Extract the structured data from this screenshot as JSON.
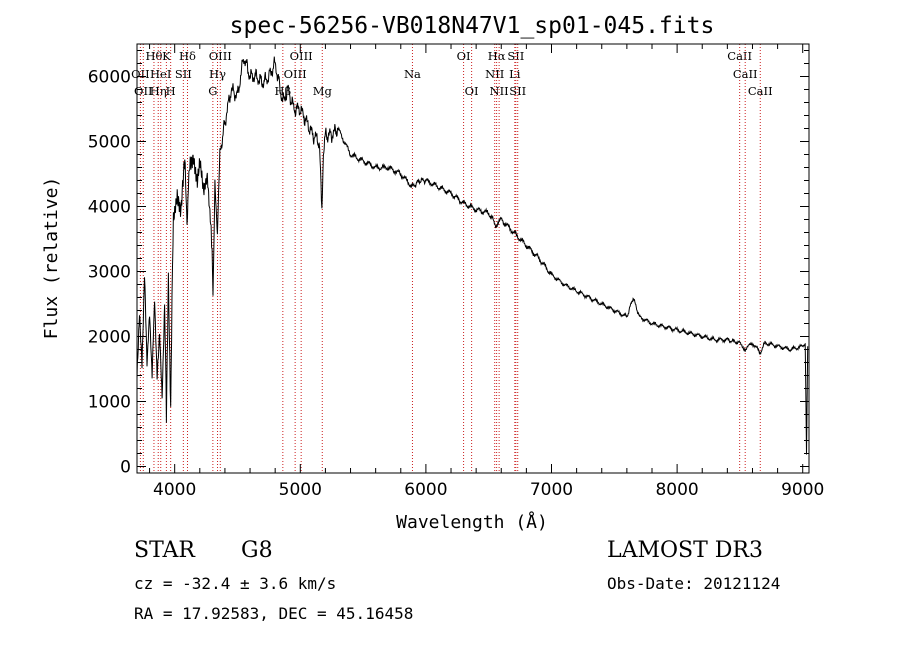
{
  "chart_data": {
    "type": "line",
    "title": "spec-56256-VB018N47V1_sp01-045.fits",
    "xlabel": "Wavelength (Å)",
    "ylabel": "Flux (relative)",
    "xlim": [
      3700,
      9050
    ],
    "ylim": [
      -100,
      6500
    ],
    "x_ticks": [
      4000,
      5000,
      6000,
      7000,
      8000,
      9000
    ],
    "y_ticks": [
      0,
      1000,
      2000,
      3000,
      4000,
      5000,
      6000
    ],
    "x_tick_labels": [
      "4000",
      "5000",
      "6000",
      "7000",
      "8000",
      "9000"
    ],
    "y_tick_labels": [
      "0",
      "1000",
      "2000",
      "3000",
      "4000",
      "5000",
      "6000"
    ],
    "series": [
      {
        "name": "flux",
        "color": "#000000",
        "x": [
          3700,
          3720,
          3740,
          3760,
          3780,
          3800,
          3820,
          3840,
          3860,
          3880,
          3900,
          3920,
          3934,
          3950,
          3968,
          3990,
          4020,
          4050,
          4080,
          4102,
          4120,
          4150,
          4180,
          4200,
          4230,
          4260,
          4290,
          4305,
          4320,
          4340,
          4360,
          4400,
          4450,
          4500,
          4550,
          4600,
          4650,
          4700,
          4750,
          4800,
          4861,
          4900,
          4950,
          5000,
          5050,
          5100,
          5150,
          5172,
          5184,
          5200,
          5250,
          5300,
          5400,
          5500,
          5600,
          5700,
          5800,
          5893,
          5950,
          6000,
          6100,
          6200,
          6300,
          6400,
          6500,
          6563,
          6600,
          6700,
          6800,
          6900,
          7000,
          7100,
          7200,
          7300,
          7400,
          7500,
          7600,
          7650,
          7700,
          7800,
          7900,
          8000,
          8100,
          8200,
          8300,
          8400,
          8498,
          8542,
          8600,
          8662,
          8700,
          8800,
          8900,
          9000,
          9020,
          9030,
          9040
        ],
        "y": [
          1400,
          2500,
          1700,
          3000,
          1500,
          2200,
          1300,
          2600,
          1500,
          2200,
          1100,
          2400,
          700,
          2800,
          1000,
          3900,
          4300,
          3900,
          4600,
          3800,
          4700,
          4900,
          4400,
          4600,
          4100,
          4500,
          3800,
          2600,
          4400,
          3500,
          4800,
          5300,
          5800,
          5700,
          6300,
          6000,
          6000,
          5900,
          6000,
          6200,
          5600,
          5800,
          5500,
          5500,
          5300,
          5100,
          5000,
          4000,
          4700,
          5100,
          5100,
          5200,
          4800,
          4700,
          4600,
          4600,
          4500,
          4300,
          4400,
          4400,
          4300,
          4200,
          4050,
          3950,
          3900,
          3700,
          3800,
          3600,
          3400,
          3200,
          2950,
          2800,
          2700,
          2600,
          2500,
          2400,
          2300,
          2600,
          2300,
          2200,
          2150,
          2100,
          2050,
          2000,
          1950,
          1950,
          1900,
          1800,
          1900,
          1750,
          1900,
          1850,
          1800,
          1850,
          1900,
          200,
          1850
        ]
      }
    ],
    "emission_lines": [
      {
        "wavelength": 3727,
        "row": 1,
        "label": "OII"
      },
      {
        "wavelength": 3750,
        "row": 2,
        "label": "OII"
      },
      {
        "wavelength": 3835,
        "row": 0,
        "label": "Hθ"
      },
      {
        "wavelength": 3869,
        "row": 2,
        "label": "Hη"
      },
      {
        "wavelength": 3889,
        "row": 1,
        "label": "HeI"
      },
      {
        "wavelength": 3934,
        "row": 0,
        "label": "K"
      },
      {
        "wavelength": 3968,
        "row": 2,
        "label": "H"
      },
      {
        "wavelength": 4069,
        "row": 1,
        "label": "SII"
      },
      {
        "wavelength": 4102,
        "row": 0,
        "label": "Hδ"
      },
      {
        "wavelength": 4304,
        "row": 2,
        "label": "G"
      },
      {
        "wavelength": 4341,
        "row": 1,
        "label": "Hγ"
      },
      {
        "wavelength": 4363,
        "row": 0,
        "label": "OIII"
      },
      {
        "wavelength": 4861,
        "row": 2,
        "label": "Hβ"
      },
      {
        "wavelength": 4959,
        "row": 1,
        "label": "OIII"
      },
      {
        "wavelength": 5007,
        "row": 0,
        "label": "OIII"
      },
      {
        "wavelength": 5175,
        "row": 2,
        "label": "Mg"
      },
      {
        "wavelength": 5893,
        "row": 1,
        "label": "Na"
      },
      {
        "wavelength": 6300,
        "row": 0,
        "label": "OI"
      },
      {
        "wavelength": 6364,
        "row": 2,
        "label": "OI"
      },
      {
        "wavelength": 6548,
        "row": 1,
        "label": "NII"
      },
      {
        "wavelength": 6563,
        "row": 0,
        "label": "Hα"
      },
      {
        "wavelength": 6583,
        "row": 2,
        "label": "NII"
      },
      {
        "wavelength": 6708,
        "row": 1,
        "label": "Li"
      },
      {
        "wavelength": 6716,
        "row": 0,
        "label": "SII"
      },
      {
        "wavelength": 6731,
        "row": 2,
        "label": "SII"
      },
      {
        "wavelength": 8498,
        "row": 0,
        "label": "CaII"
      },
      {
        "wavelength": 8542,
        "row": 1,
        "label": "CaII"
      },
      {
        "wavelength": 8662,
        "row": 2,
        "label": "CaII"
      }
    ]
  },
  "info": {
    "class": "STAR",
    "subclass": "G8",
    "redshift_text": "cz = -32.4 ± 3.6 km/s",
    "coords_text": "RA =  17.92583, DEC =  45.16458",
    "survey": "LAMOST DR3",
    "obs_date": "Obs-Date: 20121124"
  },
  "colors": {
    "line_marker": "#cc2020",
    "spectrum": "#000000",
    "axes": "#000000"
  }
}
